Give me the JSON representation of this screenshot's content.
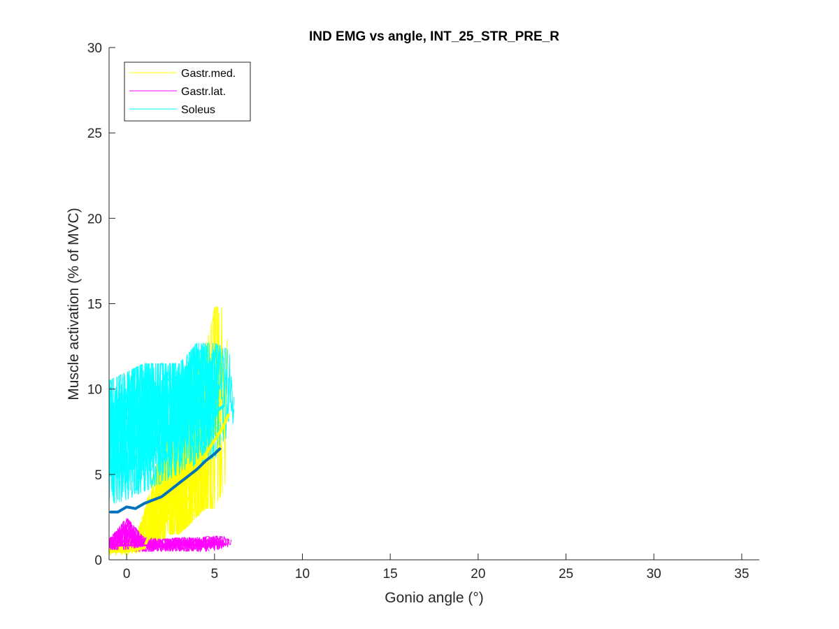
{
  "chart_data": {
    "type": "line",
    "title": "IND EMG vs angle, INT_25_STR_PRE_R",
    "xlabel": "Gonio angle (°)",
    "ylabel": "Muscle activation (% of MVC)",
    "xlim": [
      -1,
      36
    ],
    "ylim": [
      0,
      30
    ],
    "xticks": [
      0,
      5,
      10,
      15,
      20,
      25,
      30,
      35
    ],
    "yticks": [
      0,
      5,
      10,
      15,
      20,
      25,
      30
    ],
    "grid": false,
    "legend_position": "top-left",
    "legend": [
      {
        "name": "Gastr.med.",
        "color": "#FFFF00"
      },
      {
        "name": "Gastr.lat.",
        "color": "#FF00FF"
      },
      {
        "name": "Soleus",
        "color": "#00FFFF"
      }
    ],
    "series": [
      {
        "name": "Gastr.med.",
        "kind": "individual trials",
        "color": "#FFFF00",
        "x_range": [
          -1,
          6.1
        ],
        "envelope_x": [
          -1,
          0,
          0.5,
          1,
          1.5,
          2,
          2.5,
          3,
          3.5,
          4,
          4.5,
          5,
          5.5,
          6
        ],
        "envelope_low": [
          0.3,
          0.3,
          0.4,
          0.5,
          1,
          1,
          1.5,
          1.5,
          2,
          2.5,
          3,
          3,
          4,
          6
        ],
        "envelope_high": [
          1.1,
          1.2,
          1.3,
          2.8,
          5,
          6.5,
          8,
          9.5,
          10.5,
          11.5,
          12.5,
          14.8,
          14.8,
          11
        ]
      },
      {
        "name": "Gastr.med. mean",
        "kind": "mean",
        "color": "#FFFF00",
        "x": [
          -0.9,
          0,
          0.5,
          1,
          1.3,
          1.7,
          2,
          2.5,
          3,
          3.5,
          4,
          4.5,
          5,
          5.5,
          5.8
        ],
        "y": [
          0.5,
          0.5,
          0.6,
          0.7,
          1.5,
          2.2,
          3,
          3.6,
          4.2,
          4.9,
          5.6,
          6.2,
          7,
          7.8,
          8.5
        ]
      },
      {
        "name": "Gastr.lat.",
        "kind": "individual trials",
        "color": "#FF00FF",
        "x_range": [
          -1,
          6.2
        ],
        "envelope_x": [
          -1,
          0,
          1,
          2,
          3,
          4,
          5,
          6
        ],
        "envelope_low": [
          0.5,
          0.5,
          0.5,
          0.5,
          0.5,
          0.5,
          0.5,
          0.6
        ],
        "envelope_high": [
          1.2,
          2.5,
          1.3,
          1.2,
          1.3,
          1.3,
          1.4,
          1.3
        ]
      },
      {
        "name": "Gastr.lat. mean",
        "kind": "mean",
        "color": "#FF00FF",
        "x": [
          -0.9,
          0,
          1,
          2,
          3,
          4,
          5,
          5.6
        ],
        "y": [
          0.8,
          0.85,
          0.85,
          0.8,
          0.85,
          0.9,
          0.9,
          0.9
        ]
      },
      {
        "name": "Soleus",
        "kind": "individual trials",
        "color": "#00FFFF",
        "x_range": [
          -1,
          6.2
        ],
        "envelope_x": [
          -1,
          0,
          1,
          2,
          3,
          4,
          5,
          6
        ],
        "envelope_low": [
          3.2,
          3.5,
          4,
          4.5,
          5,
          5.5,
          6,
          7
        ],
        "envelope_high": [
          10.5,
          11,
          11.5,
          11.5,
          11.5,
          12.7,
          12.7,
          12.2
        ]
      },
      {
        "name": "Soleus mean",
        "kind": "mean",
        "color": "#00FFFF",
        "x": [
          -0.9,
          -0.5,
          0,
          0.5,
          1,
          1.5,
          2,
          2.5,
          3,
          3.5,
          4,
          4.5,
          5,
          5.5
        ],
        "y": [
          7,
          6.9,
          7.4,
          7.2,
          7.6,
          7.8,
          7.7,
          7.8,
          8.1,
          8.5,
          8.3,
          8.8,
          8.6,
          9
        ]
      },
      {
        "name": "Overall mean",
        "kind": "mean",
        "color": "#0072BD",
        "x": [
          -0.9,
          -0.5,
          0,
          0.5,
          1,
          1.5,
          2,
          2.5,
          3,
          3.5,
          4,
          4.5,
          5,
          5.3
        ],
        "y": [
          2.8,
          2.8,
          3.1,
          3,
          3.3,
          3.5,
          3.7,
          4.1,
          4.5,
          4.9,
          5.3,
          5.8,
          6.2,
          6.5
        ]
      }
    ]
  }
}
